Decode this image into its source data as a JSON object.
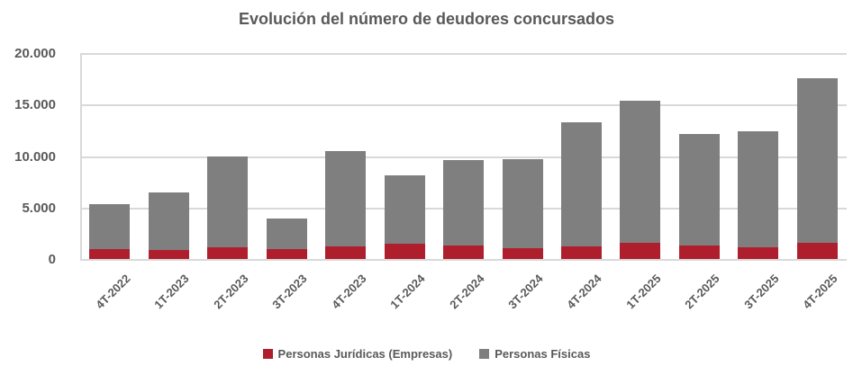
{
  "title": "Evolución del número de deudores concursados",
  "colors": {
    "juridicas": "#af1e2d",
    "fisicas": "#7f7f7f",
    "gridline": "#d9d9d9",
    "text": "#595959",
    "background": "#ffffff"
  },
  "y_axis": {
    "tick_labels": [
      "20.000",
      "15.000",
      "10.000",
      "5.000",
      "0"
    ],
    "min": 0,
    "max": 20000
  },
  "legend": {
    "items": [
      {
        "label": "Personas Jurídicas (Empresas)",
        "series": "juridicas"
      },
      {
        "label": "Personas Físicas",
        "series": "fisicas"
      }
    ]
  },
  "chart_data": {
    "type": "bar",
    "stacked": true,
    "title": "Evolución del número de deudores concursados",
    "categories": [
      "4T-2022",
      "1T-2023",
      "2T-2023",
      "3T-2023",
      "4T-2023",
      "1T-2024",
      "2T-2024",
      "3T-2024",
      "4T-2024",
      "1T-2025",
      "2T-2025",
      "3T-2025",
      "4T-2025"
    ],
    "series": [
      {
        "name": "Personas Jurídicas (Empresas)",
        "color": "#af1e2d",
        "values": [
          1050,
          950,
          1250,
          1050,
          1350,
          1550,
          1400,
          1150,
          1300,
          1650,
          1400,
          1200,
          1650
        ]
      },
      {
        "name": "Personas Físicas",
        "color": "#7f7f7f",
        "values": [
          4400,
          5600,
          8800,
          2950,
          9200,
          6650,
          8300,
          8650,
          12050,
          13800,
          10850,
          11300,
          15950
        ]
      }
    ],
    "stack_totals": [
      5450,
      6550,
      10050,
      4000,
      10550,
      8200,
      9700,
      9800,
      13350,
      15450,
      12250,
      12500,
      17600
    ],
    "xlabel": "",
    "ylabel": "",
    "ylim": [
      0,
      20000
    ],
    "grid": "horizontal",
    "legend_position": "bottom"
  }
}
